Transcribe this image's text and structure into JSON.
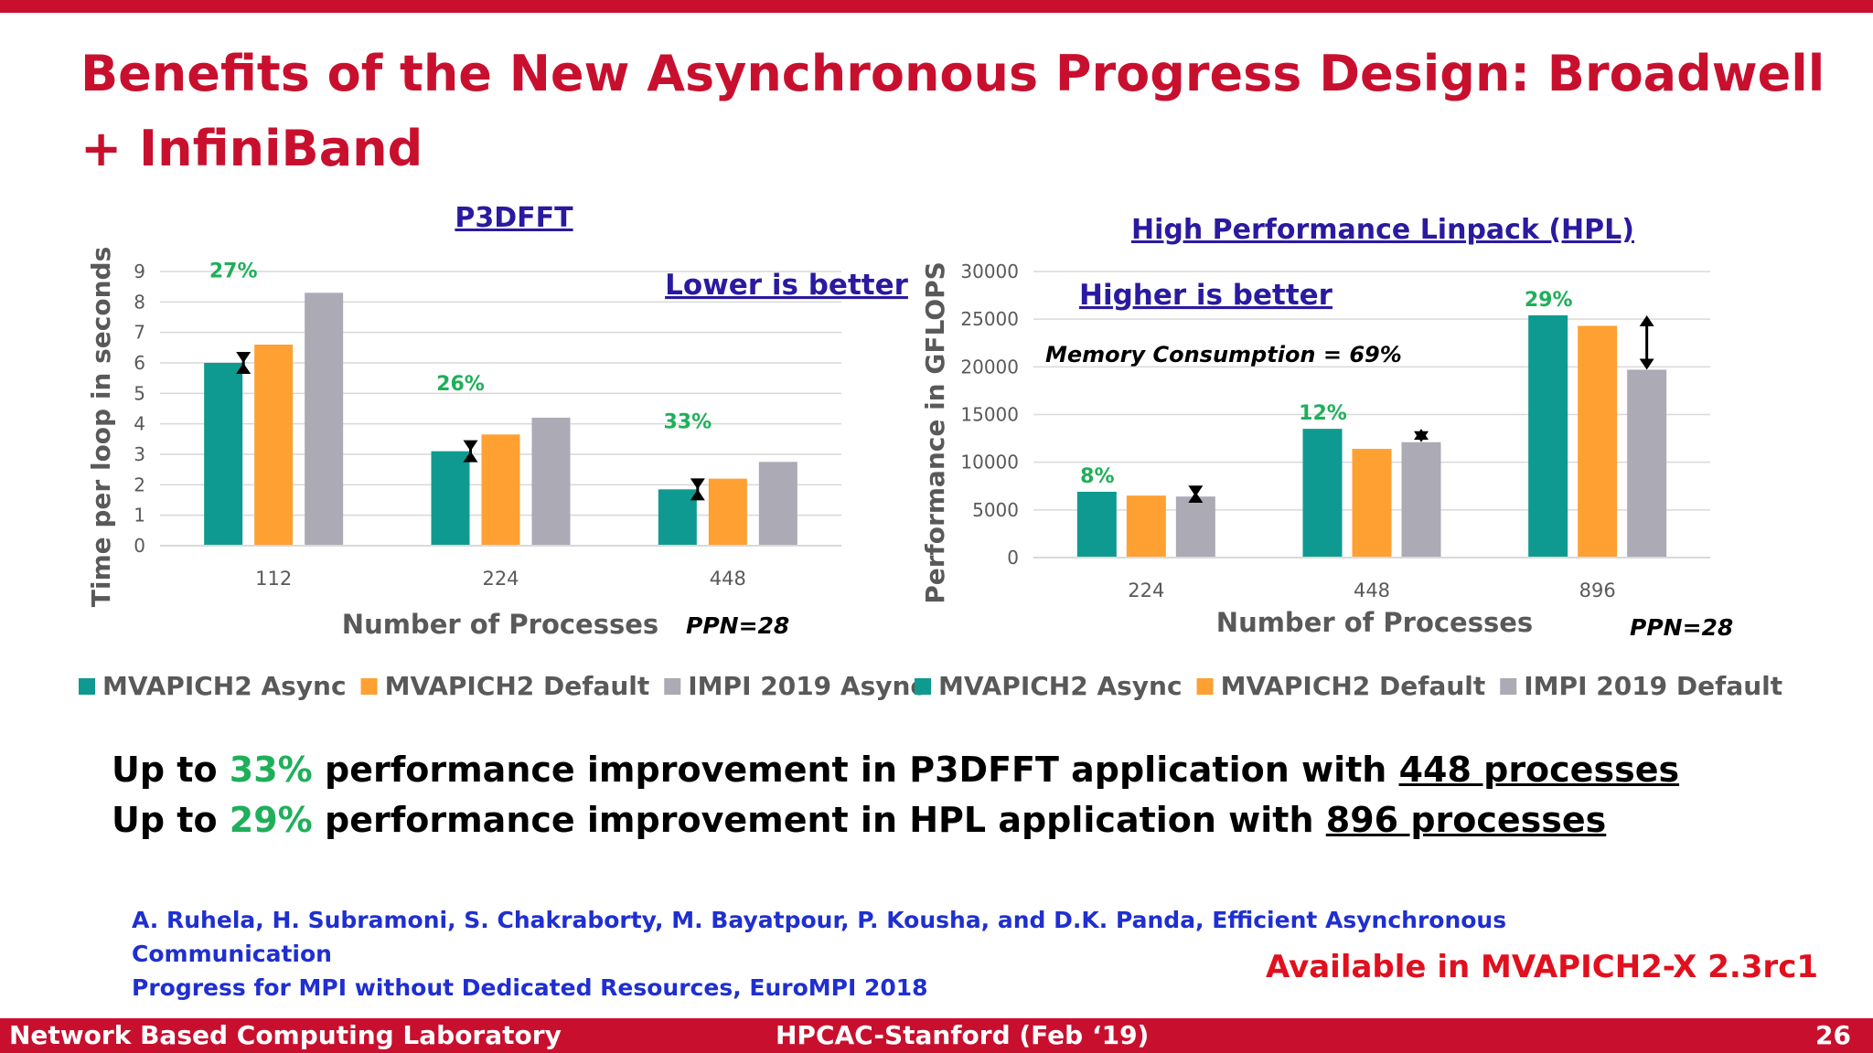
{
  "slide": {
    "title": "Benefits of the New Asynchronous Progress Design: Broadwell + InfiniBand",
    "message1": {
      "prefix": "Up to ",
      "pct": "33%",
      "middle": " performance improvement in P3DFFT application with ",
      "emph": "448 processes"
    },
    "message2": {
      "prefix": "Up to ",
      "pct": "29%",
      "middle": " performance improvement in HPL application with ",
      "emph": "896 processes"
    },
    "citation_line1": "A. Ruhela, H. Subramoni, S. Chakraborty, M. Bayatpour, P. Kousha, and D.K. Panda, Efficient Asynchronous Communication",
    "citation_line2": "Progress for MPI without Dedicated Resources, EuroMPI 2018",
    "available": "Available in MVAPICH2-X 2.3rc1",
    "footer_left": "Network Based Computing Laboratory",
    "footer_center": "HPCAC-Stanford (Feb ‘19)",
    "footer_right": "26"
  },
  "colors": {
    "brand": "#c8102e",
    "teal": "#0f9a91",
    "orange": "#ffa033",
    "gray": "#abaab5",
    "green": "#1faf5a",
    "purple": "#2a1aa0",
    "blue": "#1f2fd0"
  },
  "chart_data": [
    {
      "type": "bar",
      "title": "P3DFFT",
      "note": "Lower is better",
      "xlabel": "Number of Processes",
      "ppn": "PPN=28",
      "ylabel": "Time  per loop in seconds",
      "ylim": [
        0,
        9
      ],
      "yticks": [
        0,
        1,
        2,
        3,
        4,
        5,
        6,
        7,
        8,
        9
      ],
      "categories": [
        "112",
        "224",
        "448"
      ],
      "series": [
        {
          "name": "MVAPICH2 Async",
          "values": [
            6.0,
            3.1,
            1.85
          ]
        },
        {
          "name": "MVAPICH2 Default",
          "values": [
            6.6,
            3.65,
            2.2
          ]
        },
        {
          "name": "IMPI 2019 Async",
          "values": [
            8.3,
            4.2,
            2.75
          ]
        }
      ],
      "annotations": [
        "27%",
        "26%",
        "33%"
      ],
      "grid": true,
      "legend": "bottom"
    },
    {
      "type": "bar",
      "title": "High Performance Linpack (HPL)",
      "note": "Higher is better",
      "subnote": "Memory Consumption = 69%",
      "xlabel": "Number of Processes",
      "ppn": "PPN=28",
      "ylabel": "Performance in GFLOPS",
      "ylim": [
        0,
        30000
      ],
      "yticks": [
        0,
        5000,
        10000,
        15000,
        20000,
        25000,
        30000
      ],
      "categories": [
        "224",
        "448",
        "896"
      ],
      "series": [
        {
          "name": "MVAPICH2 Async",
          "values": [
            6900,
            13500,
            25400
          ]
        },
        {
          "name": "MVAPICH2 Default",
          "values": [
            6500,
            11400,
            24300
          ]
        },
        {
          "name": "IMPI 2019 Default",
          "values": [
            6400,
            12100,
            19700
          ]
        }
      ],
      "annotations": [
        "8%",
        "12%",
        "29%"
      ],
      "grid": true,
      "legend": "bottom"
    }
  ]
}
